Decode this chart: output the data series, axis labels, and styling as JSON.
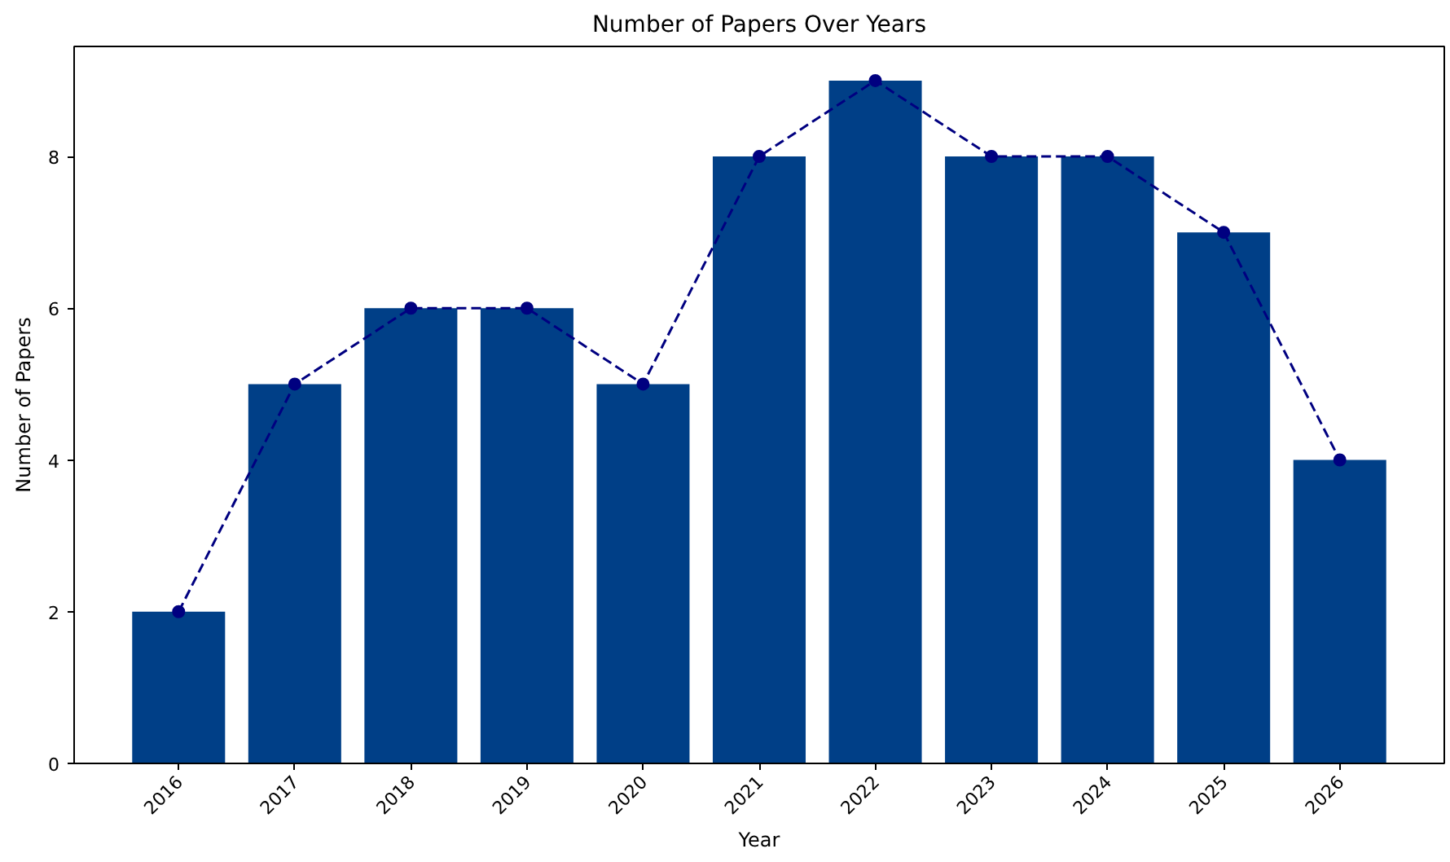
{
  "chart_data": {
    "type": "bar",
    "title": "Number of Papers Over Years",
    "xlabel": "Year",
    "ylabel": "Number of Papers",
    "categories": [
      "2016",
      "2017",
      "2018",
      "2019",
      "2020",
      "2021",
      "2022",
      "2023",
      "2024",
      "2025",
      "2026"
    ],
    "series": [
      {
        "color": "#003f87",
        "values": [
          2,
          5,
          6,
          6,
          5,
          8,
          9,
          8,
          8,
          7,
          4
        ]
      },
      {
        "type": "line",
        "color": "#000080",
        "values": [
          2,
          5,
          6,
          6,
          5,
          8,
          9,
          8,
          8,
          7,
          4
        ]
      }
    ],
    "ylim": [
      0,
      9.45
    ],
    "yticks": [
      0,
      2,
      4,
      6,
      8
    ],
    "grid": false,
    "marker": "circle",
    "line_style": "dashed"
  }
}
